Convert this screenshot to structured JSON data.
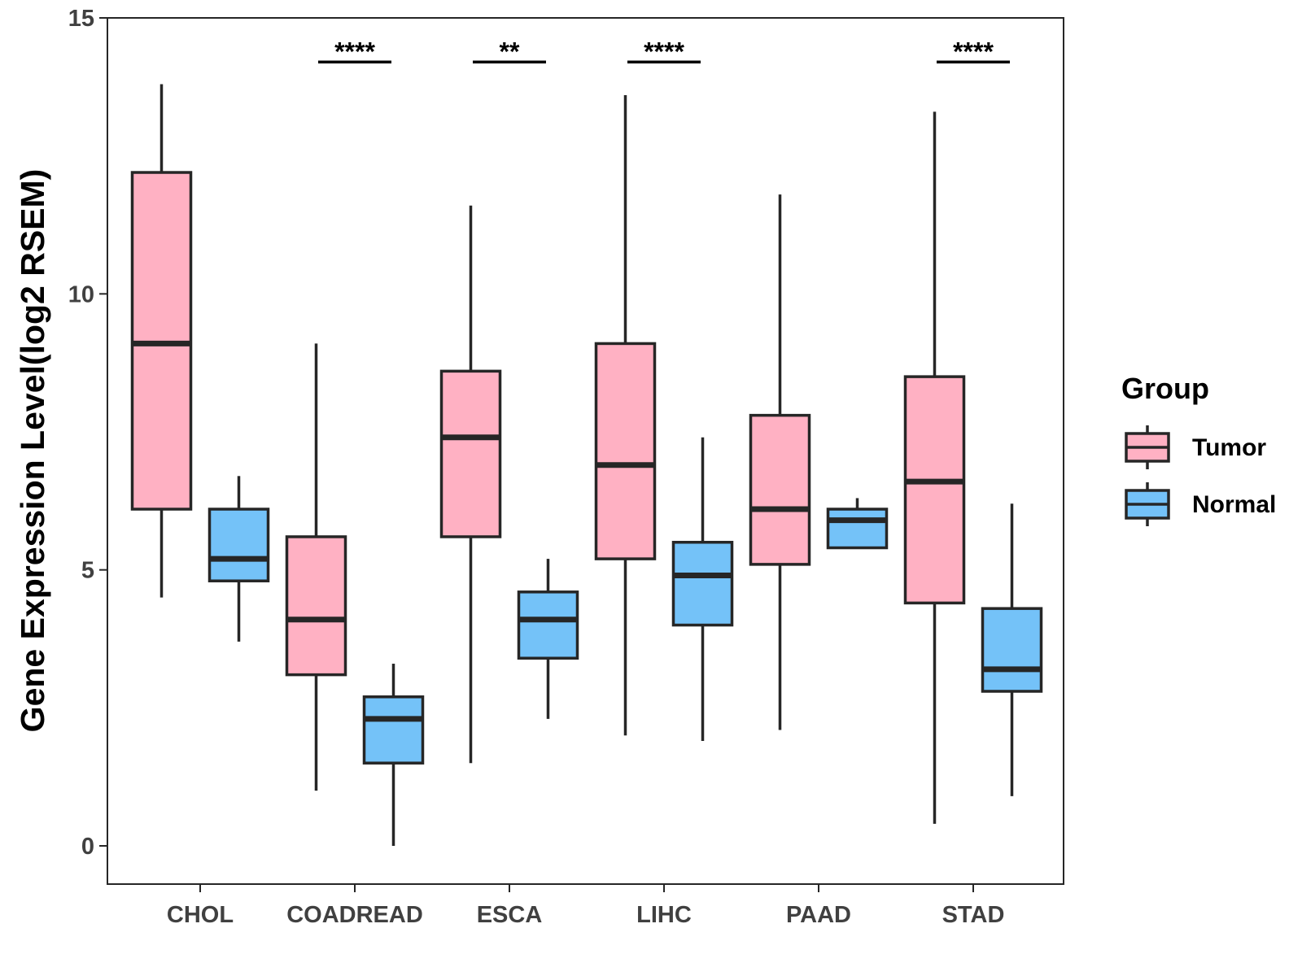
{
  "chart_data": {
    "type": "boxplot",
    "title": "",
    "xlabel": "",
    "ylabel": "Gene Expression Level(log2 RSEM)",
    "ylim": [
      -0.7,
      15
    ],
    "yticks": [
      0,
      5,
      10,
      15
    ],
    "grid": false,
    "legend": {
      "title": "Group",
      "position": "right",
      "entries": [
        "Tumor",
        "Normal"
      ]
    },
    "colors": {
      "Tumor": "#FFB1C3",
      "Normal": "#74C2F8",
      "outline": "#262626"
    },
    "categories": [
      "CHOL",
      "COADREAD",
      "ESCA",
      "LIHC",
      "PAAD",
      "STAD"
    ],
    "series": [
      {
        "name": "Tumor",
        "boxes": [
          {
            "min": 4.5,
            "q1": 6.1,
            "median": 9.1,
            "q3": 12.2,
            "max": 13.8
          },
          {
            "min": 1.0,
            "q1": 3.1,
            "median": 4.1,
            "q3": 5.6,
            "max": 9.1
          },
          {
            "min": 1.5,
            "q1": 5.6,
            "median": 7.4,
            "q3": 8.6,
            "max": 11.6
          },
          {
            "min": 2.0,
            "q1": 5.2,
            "median": 6.9,
            "q3": 9.1,
            "max": 13.6
          },
          {
            "min": 2.1,
            "q1": 5.1,
            "median": 6.1,
            "q3": 7.8,
            "max": 11.8
          },
          {
            "min": 0.4,
            "q1": 4.4,
            "median": 6.6,
            "q3": 8.5,
            "max": 13.3
          }
        ]
      },
      {
        "name": "Normal",
        "boxes": [
          {
            "min": 3.7,
            "q1": 4.8,
            "median": 5.2,
            "q3": 6.1,
            "max": 6.7
          },
          {
            "min": 0.0,
            "q1": 1.5,
            "median": 2.3,
            "q3": 2.7,
            "max": 3.3
          },
          {
            "min": 2.3,
            "q1": 3.4,
            "median": 4.1,
            "q3": 4.6,
            "max": 5.2
          },
          {
            "min": 1.9,
            "q1": 4.0,
            "median": 4.9,
            "q3": 5.5,
            "max": 7.4
          },
          {
            "min": 5.4,
            "q1": 5.4,
            "median": 5.9,
            "q3": 6.1,
            "max": 6.3
          },
          {
            "min": 0.9,
            "q1": 2.8,
            "median": 3.2,
            "q3": 4.3,
            "max": 6.2
          }
        ]
      }
    ],
    "significance": [
      {
        "category": "COADREAD",
        "label": "****",
        "y": 14.2
      },
      {
        "category": "ESCA",
        "label": "**",
        "y": 14.2
      },
      {
        "category": "LIHC",
        "label": "****",
        "y": 14.2
      },
      {
        "category": "STAD",
        "label": "****",
        "y": 14.2
      }
    ]
  }
}
